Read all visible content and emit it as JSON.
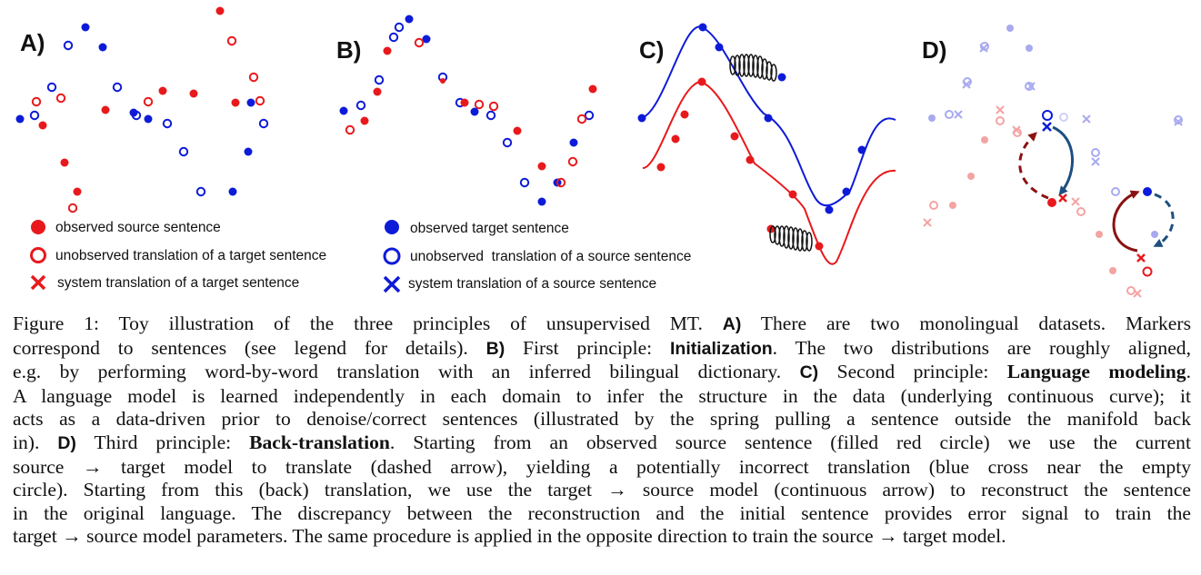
{
  "panels": {
    "a_label": "A)",
    "b_label": "B)",
    "c_label": "C)",
    "d_label": "D)"
  },
  "legend": {
    "observed_source": "observed source sentence",
    "unobserved_target_translation": "unobserved translation of a target sentence",
    "system_target_translation": "system translation of a target sentence",
    "observed_target": "observed target sentence",
    "unobserved_source_translation": "unobserved  translation of a source sentence",
    "system_source_translation": "system translation of a source sentence"
  },
  "colors": {
    "red": "#e8191c",
    "blue": "#0d1bd8",
    "dark_red": "#8b1212",
    "dark_blue": "#1d4f80",
    "light_red": "#f4a3a3",
    "light_blue": "#a8aaf0"
  },
  "caption": {
    "l1a": "Figure 1:  Toy illustration of the three principles of unsupervised MT. ",
    "a_ref": "A)",
    "l1b": " There are two monolingual datasets.  Markers",
    "l2a": "correspond to sentences (see legend for details). ",
    "b_ref": "B)",
    "l2b": " First principle: ",
    "b_term": "Initialization",
    "l2c": ". The two distributions are roughly aligned,",
    "l3a": "e.g. by performing word-by-word translation with an inferred bilingual dictionary. ",
    "c_ref": "C)",
    "l3b": " Second principle: ",
    "c_term": "Language modeling",
    "l3c": ".",
    "l4": "A language model is learned independently in each domain to infer the structure in the data (underlying continuous curve); it",
    "l5": "acts as a data-driven prior to denoise/correct sentences (illustrated by the spring pulling a sentence outside the manifold back",
    "l6a": "in).  ",
    "d_ref": "D)",
    "l6b": " Third principle:  ",
    "d_term": "Back-translation",
    "l6c": ".  Starting from an observed source sentence (filled red circle) we use the current",
    "l7": "source  →  target model to translate (dashed arrow), yielding a potentially incorrect translation (blue cross near the empty",
    "l8": "circle). Starting from this (back) translation, we use the target → source model (continuous arrow) to reconstruct the sentence",
    "l9": "in the original language. The discrepancy between the reconstruction and the initial sentence provides error signal to train the",
    "l10": "target → source model parameters. The same procedure is applied in the opposite direction to train the source → target model."
  }
}
